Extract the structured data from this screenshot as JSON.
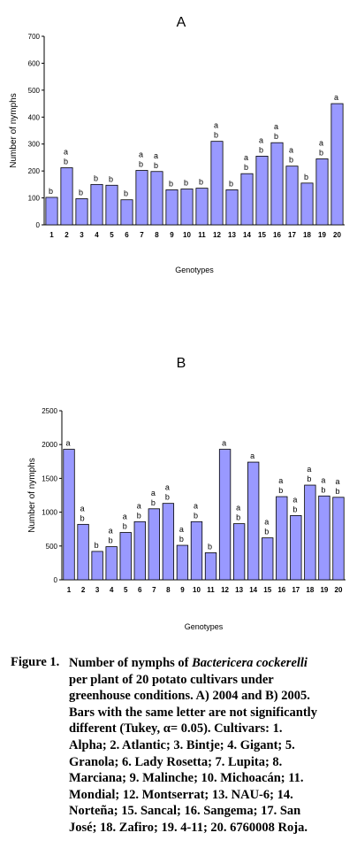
{
  "chart_data": [
    {
      "type": "bar",
      "panel_label": "A",
      "categories": [
        "1",
        "2",
        "3",
        "4",
        "5",
        "6",
        "7",
        "8",
        "9",
        "10",
        "11",
        "12",
        "13",
        "14",
        "15",
        "16",
        "17",
        "18",
        "19",
        "20"
      ],
      "values": [
        102,
        212,
        97,
        150,
        147,
        93,
        202,
        198,
        130,
        133,
        136,
        310,
        130,
        190,
        255,
        305,
        218,
        155,
        245,
        450
      ],
      "letters": [
        [
          "b"
        ],
        [
          "a",
          "b"
        ],
        [
          "b"
        ],
        [
          "b"
        ],
        [
          "b"
        ],
        [
          "b"
        ],
        [
          "a",
          "b"
        ],
        [
          "a",
          "b"
        ],
        [
          "b"
        ],
        [
          "b"
        ],
        [
          "b"
        ],
        [
          "a",
          "b"
        ],
        [
          "b"
        ],
        [
          "a",
          "b"
        ],
        [
          "a",
          "b"
        ],
        [
          "a",
          "b"
        ],
        [
          "a",
          "b"
        ],
        [
          "b"
        ],
        [
          "a",
          "b"
        ],
        [
          "a"
        ]
      ],
      "xlabel": "Genotypes",
      "ylabel": "Number of nymphs",
      "ylim": [
        0,
        700
      ],
      "yticks": [
        0,
        100,
        200,
        300,
        400,
        500,
        600,
        700
      ],
      "bar_color": "#9999ff",
      "grid": false
    },
    {
      "type": "bar",
      "panel_label": "B",
      "categories": [
        "1",
        "2",
        "3",
        "4",
        "5",
        "6",
        "7",
        "8",
        "9",
        "10",
        "11",
        "12",
        "13",
        "14",
        "15",
        "16",
        "17",
        "18",
        "19",
        "20"
      ],
      "values": [
        1930,
        820,
        420,
        490,
        700,
        860,
        1050,
        1130,
        510,
        860,
        400,
        1930,
        830,
        1740,
        620,
        1230,
        950,
        1400,
        1240,
        1220
      ],
      "letters": [
        [
          "a"
        ],
        [
          "a",
          "b"
        ],
        [
          "b"
        ],
        [
          "a",
          "b"
        ],
        [
          "a",
          "b"
        ],
        [
          "a",
          "b"
        ],
        [
          "a",
          "b"
        ],
        [
          "a",
          "b"
        ],
        [
          "a",
          "b"
        ],
        [
          "a",
          "b"
        ],
        [
          "b"
        ],
        [
          "a"
        ],
        [
          "a",
          "b"
        ],
        [
          "a"
        ],
        [
          "a",
          "b"
        ],
        [
          "a",
          "b"
        ],
        [
          "a",
          "b"
        ],
        [
          "a",
          "b"
        ],
        [
          "a",
          "b"
        ],
        [
          "a",
          "b"
        ]
      ],
      "xlabel": "Genotypes",
      "ylabel": "Number of nymphs",
      "ylim": [
        0,
        2500
      ],
      "yticks": [
        0,
        500,
        1000,
        1500,
        2000,
        2500
      ],
      "bar_color": "#9999ff",
      "grid": false
    }
  ],
  "caption": {
    "label": "Figure 1.",
    "lines": [
      [
        {
          "t": "Number of nymphs of "
        },
        {
          "t": "Bactericera cockerelli",
          "i": true
        }
      ],
      [
        {
          "t": "per plant of 20 potato cultivars under"
        }
      ],
      [
        {
          "t": "greenhouse conditions. A) 2004 and B) 2005."
        }
      ],
      [
        {
          "t": "Bars with the same letter are not significantly"
        }
      ],
      [
        {
          "t": "different (Tukey, α= 0.05). Cultivars: 1."
        }
      ],
      [
        {
          "t": "Alpha; 2. Atlantic; 3. Bintje; 4. Gigant; 5."
        }
      ],
      [
        {
          "t": "Granola; 6. Lady Rosetta; 7. Lupita; 8."
        }
      ],
      [
        {
          "t": "Marciana; 9. Malinche; 10. Michoacán; 11."
        }
      ],
      [
        {
          "t": "Mondial; 12. Montserrat; 13. NAU-6; 14."
        }
      ],
      [
        {
          "t": "Norteña; 15. Sancal; 16. Sangema; 17. San"
        }
      ],
      [
        {
          "t": "José; 18. Zafiro; 19. 4-11; 20. 6760008 Roja."
        }
      ]
    ]
  }
}
